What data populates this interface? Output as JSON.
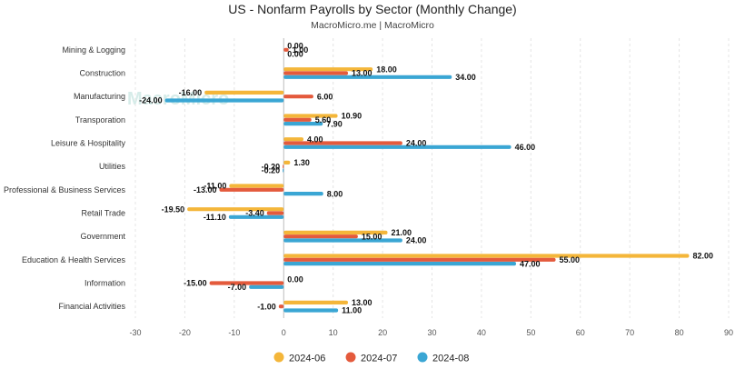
{
  "chart_data": {
    "type": "bar",
    "orientation": "horizontal",
    "title": "US - Nonfarm Payrolls by Sector (Monthly Change)",
    "subtitle": "MacroMicro.me | MacroMicro",
    "watermark": "MacroMicro",
    "categories": [
      "Mining & Logging",
      "Construction",
      "Manufacturing",
      "Transporation",
      "Leisure & Hospitality",
      "Utilities",
      "Professional & Business Services",
      "Retail Trade",
      "Government",
      "Education & Health Services",
      "Information",
      "Financial Activities"
    ],
    "series": [
      {
        "name": "2024-06",
        "color": "#f4b63a",
        "values": [
          0.0,
          18.0,
          -16.0,
          10.9,
          4.0,
          1.3,
          -11.0,
          -19.5,
          21.0,
          82.0,
          0.0,
          13.0
        ]
      },
      {
        "name": "2024-07",
        "color": "#e45a3c",
        "values": [
          1.0,
          13.0,
          6.0,
          5.6,
          24.0,
          -0.2,
          -13.0,
          -3.4,
          15.0,
          55.0,
          -15.0,
          -1.0
        ]
      },
      {
        "name": "2024-08",
        "color": "#3aa6d4",
        "values": [
          0.0,
          34.0,
          -24.0,
          7.9,
          46.0,
          -0.2,
          8.0,
          -11.1,
          24.0,
          47.0,
          -7.0,
          11.0
        ]
      }
    ],
    "xlim": [
      -30,
      90
    ],
    "xticks": [
      -30,
      -20,
      -10,
      0,
      10,
      20,
      30,
      40,
      50,
      60,
      70,
      80,
      90
    ],
    "grid": "vertical",
    "legend_position": "bottom"
  }
}
